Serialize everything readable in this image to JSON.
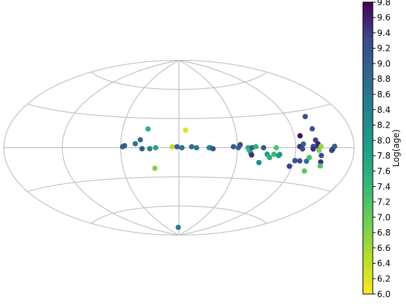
{
  "chart_data": {
    "type": "scatter",
    "projection": "aitoff",
    "grid": true,
    "longitude_range_deg": [
      -180,
      180
    ],
    "latitude_range_deg": [
      -90,
      90
    ],
    "colormap": "viridis_r",
    "colorbar": {
      "label": "Log(age)",
      "range": [
        6.0,
        9.8
      ],
      "ticks": [
        6.0,
        6.2,
        6.4,
        6.6,
        6.8,
        7.0,
        7.2,
        7.4,
        7.6,
        7.8,
        8.0,
        8.2,
        8.4,
        8.6,
        8.8,
        9.0,
        9.2,
        9.4,
        9.6,
        9.8
      ],
      "tick_labels": [
        "6.0",
        "6.2",
        "6.4",
        "6.6",
        "6.8",
        "7.0",
        "7.2",
        "7.4",
        "7.6",
        "7.8",
        "8.0",
        "8.2",
        "8.4",
        "8.6",
        "8.8",
        "9.0",
        "9.2",
        "9.4",
        "9.6",
        "9.8"
      ],
      "placement": "right"
    },
    "points": [
      {
        "lon": -58,
        "lat": 1,
        "value": 8.9
      },
      {
        "lon": -56,
        "lat": 2,
        "value": 9.0
      },
      {
        "lon": -45,
        "lat": 4,
        "value": 8.6
      },
      {
        "lon": -40,
        "lat": 8,
        "value": 8.9
      },
      {
        "lon": -33,
        "lat": 19,
        "value": 7.5
      },
      {
        "lon": -38,
        "lat": -1,
        "value": 9.1
      },
      {
        "lon": -30,
        "lat": -1,
        "value": 8.4
      },
      {
        "lon": -24,
        "lat": 0,
        "value": 7.8
      },
      {
        "lon": -26,
        "lat": -21,
        "value": 6.8
      },
      {
        "lon": -7,
        "lat": 1,
        "value": 6.4
      },
      {
        "lon": 7,
        "lat": 18,
        "value": 6.2
      },
      {
        "lon": -2,
        "lat": 1,
        "value": 9.0
      },
      {
        "lon": 3,
        "lat": 0,
        "value": 8.7
      },
      {
        "lon": 13,
        "lat": 1,
        "value": 8.8
      },
      {
        "lon": 18,
        "lat": 0,
        "value": 8.6
      },
      {
        "lon": -4,
        "lat": -82,
        "value": 8.4
      },
      {
        "lon": 32,
        "lat": 0,
        "value": 8.9
      },
      {
        "lon": 31,
        "lat": 0,
        "value": 8.2
      },
      {
        "lon": 35,
        "lat": -1,
        "value": 9.2
      },
      {
        "lon": 56,
        "lat": 1,
        "value": 9.0
      },
      {
        "lon": 61,
        "lat": 0,
        "value": 8.8
      },
      {
        "lon": 63,
        "lat": 3,
        "value": 9.3
      },
      {
        "lon": 71,
        "lat": 0,
        "value": 7.7
      },
      {
        "lon": 72,
        "lat": -2,
        "value": 7.4
      },
      {
        "lon": 74,
        "lat": -5,
        "value": 7.9
      },
      {
        "lon": 75,
        "lat": -7,
        "value": 9.5
      },
      {
        "lon": 75,
        "lat": 0,
        "value": 9.0
      },
      {
        "lon": 79,
        "lat": 1,
        "value": 7.5
      },
      {
        "lon": 84,
        "lat": -14,
        "value": 8.2
      },
      {
        "lon": 87,
        "lat": 0,
        "value": 9.1
      },
      {
        "lon": 91,
        "lat": -6,
        "value": 7.8
      },
      {
        "lon": 94,
        "lat": -9,
        "value": 7.6
      },
      {
        "lon": 98,
        "lat": -6,
        "value": 7.4
      },
      {
        "lon": 100,
        "lat": 0,
        "value": 7.2
      },
      {
        "lon": 103,
        "lat": -7,
        "value": 8.1
      },
      {
        "lon": 104,
        "lat": -6,
        "value": 8.0
      },
      {
        "lon": 117,
        "lat": -16,
        "value": 9.4
      },
      {
        "lon": 121,
        "lat": -11,
        "value": 9.2
      },
      {
        "lon": 124,
        "lat": 1,
        "value": 9.3
      },
      {
        "lon": 126,
        "lat": 1,
        "value": 9.6
      },
      {
        "lon": 127,
        "lat": -1,
        "value": 9.2
      },
      {
        "lon": 128,
        "lat": 3,
        "value": 9.0
      },
      {
        "lon": 126,
        "lat": 10,
        "value": 9.7
      },
      {
        "lon": 126,
        "lat": -11,
        "value": 9.3
      },
      {
        "lon": 133,
        "lat": -11,
        "value": 8.7
      },
      {
        "lon": 135,
        "lat": -8,
        "value": 7.3
      },
      {
        "lon": 135,
        "lat": -19,
        "value": 7.1
      },
      {
        "lon": 138,
        "lat": 1,
        "value": 9.2
      },
      {
        "lon": 138,
        "lat": -1,
        "value": 9.5
      },
      {
        "lon": 141,
        "lat": 6,
        "value": 9.4
      },
      {
        "lon": 141,
        "lat": 25,
        "value": 9.3
      },
      {
        "lon": 141,
        "lat": 15,
        "value": 9.2
      },
      {
        "lon": 143,
        "lat": 1,
        "value": 9.4
      },
      {
        "lon": 143,
        "lat": 3,
        "value": 9.6
      },
      {
        "lon": 144,
        "lat": -2,
        "value": 6.9
      },
      {
        "lon": 146,
        "lat": 1,
        "value": 6.7
      },
      {
        "lon": 147,
        "lat": -6,
        "value": 9.3
      },
      {
        "lon": 148,
        "lat": -11,
        "value": 9.5
      },
      {
        "lon": 149,
        "lat": -14,
        "value": 7.2
      },
      {
        "lon": 157,
        "lat": -2,
        "value": 9.2
      },
      {
        "lon": 158,
        "lat": -1,
        "value": 9.4
      },
      {
        "lon": 160,
        "lat": 1,
        "value": 9.0
      }
    ]
  }
}
